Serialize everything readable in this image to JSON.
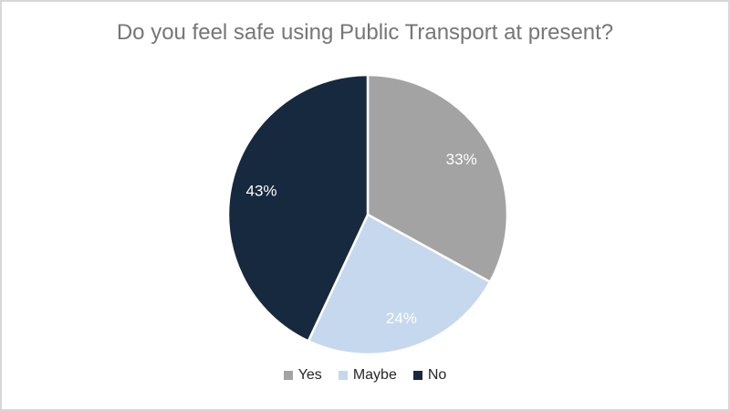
{
  "page": {
    "background_color": "#FFFFFF",
    "border_color": "#D7D7D7"
  },
  "chart_data": {
    "type": "pie",
    "title": "Do you feel safe using Public Transport at present?",
    "title_color": "#767676",
    "start_angle_deg": 0,
    "direction": "clockwise",
    "legend_position": "bottom",
    "slice_label_color": "#FFFFFF",
    "slice_border_color": "#FFFFFF",
    "segments": [
      {
        "label": "Yes",
        "value": 33,
        "value_label": "33%",
        "color": "#A3A3A3"
      },
      {
        "label": "Maybe",
        "value": 24,
        "value_label": "24%",
        "color": "#C5D8EE"
      },
      {
        "label": "No",
        "value": 43,
        "value_label": "43%",
        "color": "#16293F"
      }
    ]
  }
}
